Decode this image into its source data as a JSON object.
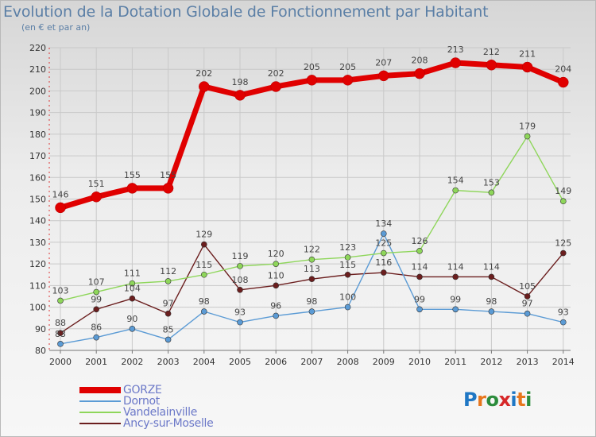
{
  "chart_data": {
    "type": "line",
    "title": "Evolution de la Dotation Globale de Fonctionnement par Habitant",
    "subtitle": "(en € et par an)",
    "xlabel": "",
    "ylabel": "",
    "ylim": [
      80,
      220
    ],
    "y_ticks": [
      80,
      90,
      100,
      110,
      120,
      130,
      140,
      150,
      160,
      170,
      180,
      190,
      200,
      210,
      220
    ],
    "categories": [
      "2000",
      "2001",
      "2002",
      "2003",
      "2004",
      "2005",
      "2006",
      "2007",
      "2008",
      "2009",
      "2010",
      "2011",
      "2012",
      "2013",
      "2014"
    ],
    "series": [
      {
        "name": "GORZE",
        "color": "#e00000",
        "values": [
          146,
          151,
          155,
          155,
          202,
          198,
          202,
          205,
          205,
          207,
          208,
          213,
          212,
          211,
          204
        ],
        "labels": [
          "146",
          "151",
          "155",
          "155",
          "202",
          "198",
          "202",
          "205",
          "205",
          "207",
          "208",
          "213",
          "212",
          "211",
          "204"
        ]
      },
      {
        "name": "Dornot",
        "color": "#5b9bd5",
        "values": [
          83,
          86,
          90,
          85,
          98,
          93,
          96,
          98,
          100,
          134,
          99,
          99,
          98,
          97,
          93
        ],
        "labels": [
          "83",
          "86",
          "90",
          "85",
          "98",
          "93",
          "96",
          "98",
          "100",
          "134",
          "99",
          "99",
          "98",
          "97",
          "93"
        ]
      },
      {
        "name": "Vandelainville",
        "color": "#8ed65a",
        "values": [
          103,
          107,
          111,
          112,
          115,
          119,
          120,
          122,
          123,
          125,
          126,
          154,
          153,
          179,
          149
        ],
        "labels": [
          "103",
          "107",
          "111",
          "112",
          "115",
          "119",
          "120",
          "122",
          "123",
          "125",
          "126",
          "154",
          "153",
          "179",
          "149"
        ]
      },
      {
        "name": "Ancy-sur-Moselle",
        "color": "#6b1e1e",
        "values": [
          88,
          99,
          104,
          97,
          129,
          108,
          110,
          113,
          115,
          116,
          114,
          114,
          114,
          105,
          125
        ],
        "labels": [
          "88",
          "99",
          "104",
          "97",
          "129",
          "108",
          "110",
          "113",
          "115",
          "116",
          "114",
          "114",
          "114",
          "105",
          "125"
        ]
      }
    ],
    "legend_position": "bottom-left"
  },
  "branding": {
    "logo_text": "Proxiti",
    "logo_letters": [
      "P",
      "r",
      "o",
      "x",
      "i",
      "t",
      "i"
    ],
    "logo_colors": [
      "#1f77c4",
      "#e8761c",
      "#2c8c3c",
      "#d62728",
      "#1f77c4",
      "#e8761c",
      "#2c8c3c"
    ]
  }
}
